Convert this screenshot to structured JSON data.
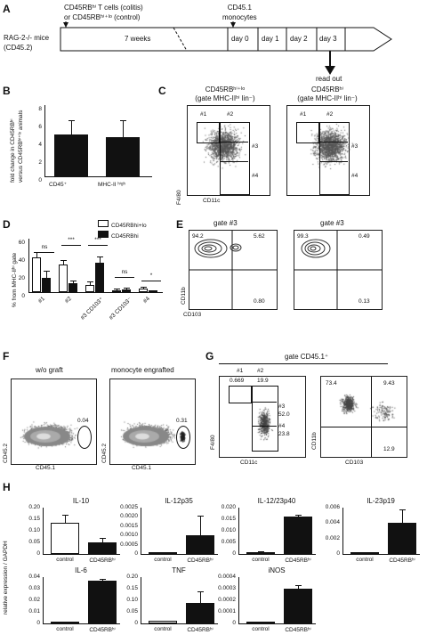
{
  "panelA": {
    "letter": "A",
    "transfer": "CD45RBʰⁱ T cells (colitis)",
    "transfer2": "or CD45RBʰⁱ⁺ˡᵒ (control)",
    "mice": "RAG-2-/- mice",
    "mice2": "(CD45.2)",
    "monocytes": "CD45.1",
    "monocytes2": "monocytes",
    "period": "7 weeks",
    "days": [
      "day 0",
      "day 1",
      "day 2",
      "day 3"
    ],
    "readout": "read out"
  },
  "panelB": {
    "letter": "B",
    "ylabel1": "fold change in CD45RBʰⁱ",
    "ylabel2": "versus CD45RBʰⁱ⁺ˡᵒ animals",
    "yticks": [
      "8",
      "6",
      "4",
      "2",
      "0"
    ],
    "categories": [
      "CD45⁺",
      "MHC-II ʰⁱᵍʰ"
    ]
  },
  "panelC": {
    "letter": "C",
    "title1": "CD45RBʰⁱ⁺ˡᵒ",
    "title1b": "(gate MHC-IIʰⁱ lin⁻)",
    "title2": "CD45RBʰⁱ",
    "title2b": "(gate MHC-IIʰⁱ lin⁻)",
    "gates": [
      "#1",
      "#2",
      "#3",
      "#4"
    ],
    "xlabel": "CD11c",
    "ylabel": "F4/80"
  },
  "panelD": {
    "letter": "D",
    "ylabel": "% from MHC-IIʰⁱ gate",
    "yticks": [
      "60",
      "40",
      "20",
      "0"
    ],
    "legend": [
      "CD45RBhi+lo",
      "CD45RBhi"
    ],
    "categories": [
      "#1",
      "#2",
      "#3 CD103⁺",
      "#3 CD103⁻",
      "#4"
    ],
    "sig": [
      "ns",
      "***",
      "***",
      "ns",
      "*"
    ]
  },
  "panelE": {
    "letter": "E",
    "title1": "gate #3",
    "title2": "gate #3",
    "q1": [
      "94.2",
      "5.62",
      "0.80"
    ],
    "q2": [
      "99.3",
      "0.49",
      "0.13"
    ],
    "xlabel": "CD103",
    "ylabel": "CD11b"
  },
  "panelF": {
    "letter": "F",
    "title1": "w/o graft",
    "title2": "monocyte engrafted",
    "val1": "0.04",
    "val2": "0.31",
    "xlabel": "CD45.1",
    "ylabel": "CD45.2"
  },
  "panelG": {
    "letter": "G",
    "header": "gate CD45.1⁺",
    "gates": [
      "#1",
      "#2",
      "#3",
      "#4"
    ],
    "v1": "0.669",
    "v2": "19.9",
    "v3": "52.0",
    "v4": "23.8",
    "q": [
      "73.4",
      "9.43",
      "12.9"
    ],
    "xlabel1": "CD11c",
    "ylabel1": "F4/80",
    "xlabel2": "CD103",
    "ylabel2": "CD11b"
  },
  "panelH": {
    "letter": "H",
    "ylabel": "relative expression / GAPDH",
    "xcats": [
      "control",
      "CD45RBʰⁱ"
    ]
  },
  "chart_data": [
    {
      "type": "bar",
      "panel": "B",
      "categories": [
        "CD45+",
        "MHC-II high"
      ],
      "values": [
        4.7,
        4.4
      ],
      "errors": [
        1.5,
        1.8
      ],
      "ylim": [
        0,
        8
      ]
    },
    {
      "type": "bar",
      "panel": "D",
      "categories": [
        "#1",
        "#2",
        "#3 CD103+",
        "#3 CD103-",
        "#4"
      ],
      "series": [
        {
          "name": "CD45RBhi+lo",
          "values": [
            39,
            31,
            8,
            2,
            4
          ],
          "errors": [
            5,
            4,
            3,
            1,
            1
          ]
        },
        {
          "name": "CD45RBhi",
          "values": [
            16,
            10,
            33,
            3,
            1
          ],
          "errors": [
            7,
            2,
            6,
            1,
            0.5
          ]
        }
      ],
      "ylim": [
        0,
        60
      ]
    },
    {
      "type": "bar",
      "panel": "H",
      "title": "IL-10",
      "categories": [
        "control",
        "CD45RBhi"
      ],
      "values": [
        0.135,
        0.05
      ],
      "errors": [
        0.03,
        0.015
      ],
      "yticks": [
        "0",
        "0.05",
        "0.10",
        "0.15",
        "0.20"
      ],
      "ymax": 0.2
    },
    {
      "type": "bar",
      "panel": "H",
      "title": "IL-12p35",
      "categories": [
        "control",
        "CD45RBhi"
      ],
      "values": [
        0,
        0.001
      ],
      "errors": [
        0,
        0.001
      ],
      "yticks": [
        "0",
        "0.0005",
        "0.0010",
        "0.0015",
        "0.0020",
        "0.0025"
      ],
      "ymax": 0.0025
    },
    {
      "type": "bar",
      "panel": "H",
      "title": "IL-12/23p40",
      "categories": [
        "control",
        "CD45RBhi"
      ],
      "values": [
        0.0004,
        0.0162
      ],
      "errors": [
        0.0002,
        0.0003
      ],
      "yticks": [
        "0",
        "0.005",
        "0.010",
        "0.015",
        "0.020"
      ],
      "ymax": 0.02
    },
    {
      "type": "bar",
      "panel": "H",
      "title": "IL-23p19",
      "categories": [
        "control",
        "CD45RBhi"
      ],
      "values": [
        0,
        0.004
      ],
      "errors": [
        0,
        0.0017
      ],
      "yticks": [
        "0",
        "0.002",
        "0.004",
        "0.006"
      ],
      "ymax": 0.006
    },
    {
      "type": "bar",
      "panel": "H",
      "title": "IL-6",
      "categories": [
        "control",
        "CD45RBhi"
      ],
      "values": [
        0.0005,
        0.037
      ],
      "errors": [
        0,
        0.0005
      ],
      "yticks": [
        "0",
        "0.01",
        "0.02",
        "0.03",
        "0.04"
      ],
      "ymax": 0.04
    },
    {
      "type": "bar",
      "panel": "H",
      "title": "TNF",
      "categories": [
        "control",
        "CD45RBhi"
      ],
      "values": [
        0.01,
        0.09
      ],
      "errors": [
        0,
        0.045
      ],
      "yticks": [
        "0",
        "0.05",
        "0.10",
        "0.15",
        "0.20"
      ],
      "ymax": 0.2
    },
    {
      "type": "bar",
      "panel": "H",
      "title": "iNOS",
      "categories": [
        "control",
        "CD45RBhi"
      ],
      "values": [
        0,
        0.0003
      ],
      "errors": [
        0,
        2e-05
      ],
      "yticks": [
        "0",
        "0.0001",
        "0.0002",
        "0.0003",
        "0.0004"
      ],
      "ymax": 0.0004
    }
  ]
}
